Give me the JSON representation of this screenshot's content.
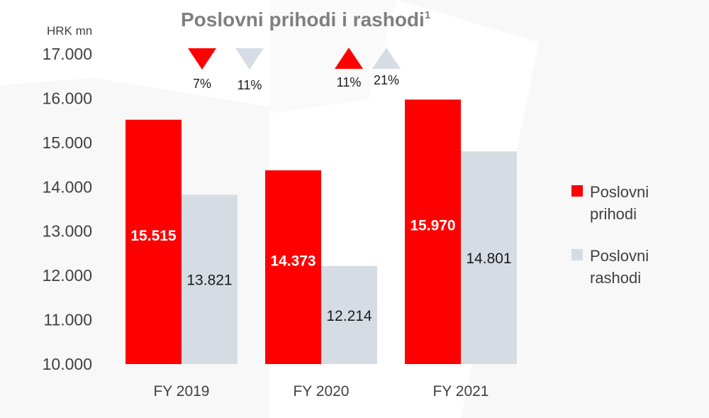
{
  "chart_data": {
    "type": "bar",
    "title": "Poslovni prihodi i rashodi",
    "title_superscript": "1",
    "ylabel": "HRK mn",
    "xlabel": "",
    "ylim": [
      10000,
      17000
    ],
    "yticks": [
      10000,
      11000,
      12000,
      13000,
      14000,
      15000,
      16000,
      17000
    ],
    "ytick_labels": [
      "10.000",
      "11.000",
      "12.000",
      "13.000",
      "14.000",
      "15.000",
      "16.000",
      "17.000"
    ],
    "categories": [
      "FY 2019",
      "FY 2020",
      "FY 2021"
    ],
    "grid": false,
    "legend_position": "right",
    "series": [
      {
        "name": "Poslovni prihodi",
        "color": "#ff0000",
        "values": [
          15515,
          14373,
          15970
        ],
        "value_labels": [
          "15.515",
          "14.373",
          "15.970"
        ]
      },
      {
        "name": "Poslovni rashodi",
        "color": "#d6dce4",
        "values": [
          13821,
          12214,
          14801
        ],
        "value_labels": [
          "13.821",
          "12.214",
          "14.801"
        ]
      }
    ],
    "annotations": [
      {
        "group": "2020 vs 2019",
        "series": "Poslovni prihodi",
        "direction": "down",
        "text": "7%",
        "color": "#ff0000"
      },
      {
        "group": "2020 vs 2019",
        "series": "Poslovni rashodi",
        "direction": "down",
        "text": "11%",
        "color": "#d6dce4"
      },
      {
        "group": "2021 vs 2020",
        "series": "Poslovni prihodi",
        "direction": "up",
        "text": "11%",
        "color": "#ff0000"
      },
      {
        "group": "2021 vs 2020",
        "series": "Poslovni rashodi",
        "direction": "up",
        "text": "21%",
        "color": "#d6dce4"
      }
    ]
  },
  "legend": [
    {
      "label_line1": "Poslovni",
      "label_line2": "prihodi",
      "color": "#ff0000"
    },
    {
      "label_line1": "Poslovni",
      "label_line2": "rashodi",
      "color": "#d6dce4"
    }
  ]
}
